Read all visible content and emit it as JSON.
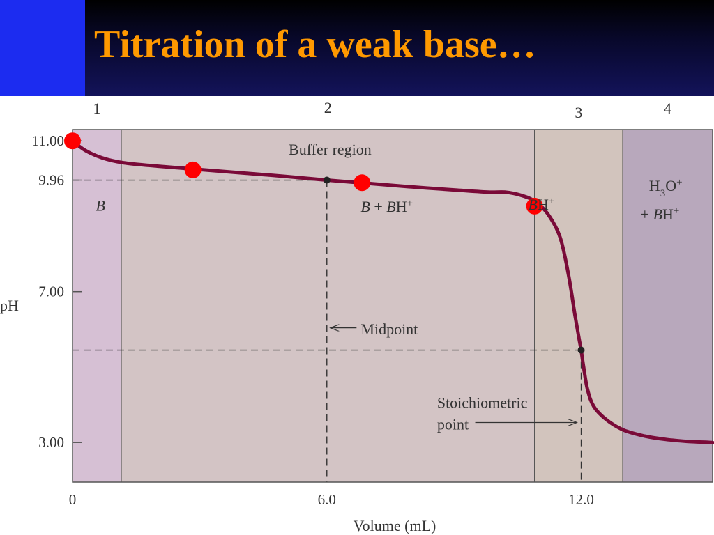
{
  "slide": {
    "title": "Titration of a weak base…",
    "colors": {
      "title": "#ff9900",
      "header_bg": "#0b0b3a",
      "accent_bar": "#1c2cf0"
    }
  },
  "chart_data": {
    "type": "line",
    "title": "",
    "xlabel": "Volume (mL)",
    "ylabel": "pH",
    "xlim": [
      0,
      15.1
    ],
    "ylim": [
      1.95,
      11.3
    ],
    "x_ticks": [
      {
        "value": 0,
        "label": "0"
      },
      {
        "value": 6.0,
        "label": "6.0"
      },
      {
        "value": 12.0,
        "label": "12.0"
      }
    ],
    "y_ticks": [
      {
        "value": 11.0,
        "label": "11.00"
      },
      {
        "value": 9.96,
        "label": "9.96"
      },
      {
        "value": 7.0,
        "label": "7.00"
      },
      {
        "value": 3.0,
        "label": "3.00"
      }
    ],
    "regions": [
      {
        "number": "1",
        "from": 0,
        "to": 1.15,
        "color": "#d6c0d4"
      },
      {
        "number": "2",
        "from": 1.15,
        "to": 10.9,
        "color": "#d3c4c5"
      },
      {
        "number": "3",
        "from": 10.9,
        "to": 12.98,
        "color": "#d2c4bd"
      },
      {
        "number": "4",
        "from": 12.98,
        "to": 15.1,
        "color": "#b8a8bc"
      }
    ],
    "region_labels": [
      {
        "parts": [
          {
            "t": "B",
            "i": true
          }
        ],
        "x": 0.55,
        "y": 9.28
      },
      {
        "parts": [
          {
            "t": "Buffer region"
          }
        ],
        "x": 5.1,
        "y": 10.76
      },
      {
        "parts": [
          {
            "t": "B",
            "i": true
          },
          {
            "t": " + "
          },
          {
            "t": "B",
            "i": true
          },
          {
            "t": "H"
          },
          {
            "t": "+",
            "sup": true
          }
        ],
        "x": 6.8,
        "y": 9.25
      },
      {
        "parts": [
          {
            "t": "B",
            "i": true
          },
          {
            "t": "H"
          },
          {
            "t": "+",
            "sup": true
          }
        ],
        "x": 10.75,
        "y": 9.3
      },
      {
        "parts": [
          {
            "t": "H"
          },
          {
            "t": "3",
            "sub": true
          },
          {
            "t": "O"
          },
          {
            "t": "+",
            "sup": true
          }
        ],
        "x": 13.6,
        "y": 9.8
      },
      {
        "parts": [
          {
            "t": "+ "
          },
          {
            "t": "B",
            "i": true
          },
          {
            "t": "H"
          },
          {
            "t": "+",
            "sup": true
          }
        ],
        "x": 13.4,
        "y": 9.05
      }
    ],
    "series": [
      {
        "x": [
          0,
          0.3,
          0.7,
          1.2,
          2.0,
          3.0,
          4.0,
          5.0,
          6.0,
          7.0,
          8.0,
          9.0,
          9.8,
          10.2,
          10.6,
          10.9,
          11.2,
          11.5,
          11.7,
          11.85,
          11.95,
          12.0,
          12.05,
          12.15,
          12.3,
          12.6,
          13.0,
          13.5,
          14.0,
          14.5,
          15.1
        ],
        "y": [
          11.0,
          10.75,
          10.55,
          10.42,
          10.33,
          10.24,
          10.15,
          10.06,
          9.96,
          9.87,
          9.78,
          9.7,
          9.64,
          9.64,
          9.55,
          9.4,
          9.08,
          8.45,
          7.45,
          6.4,
          5.75,
          5.45,
          5.05,
          4.4,
          3.95,
          3.6,
          3.33,
          3.17,
          3.08,
          3.03,
          3.0
        ],
        "color": "#7a0a38"
      }
    ],
    "highlight_points": [
      {
        "x": 0,
        "y": 11.0
      },
      {
        "x": 2.84,
        "y": 10.23
      },
      {
        "x": 6.83,
        "y": 9.89
      },
      {
        "x": 10.9,
        "y": 9.27
      }
    ],
    "reference_points": [
      {
        "x": 6.0,
        "y": 9.96
      },
      {
        "x": 12.0,
        "y": 5.45
      }
    ],
    "guides": [
      {
        "x1": 0,
        "y1": 9.96,
        "x2": 6.0,
        "y2": 9.96
      },
      {
        "x1": 6.0,
        "y1": 9.96,
        "x2": 6.0,
        "y2": 1.95
      },
      {
        "x1": 0,
        "y1": 5.45,
        "x2": 12.0,
        "y2": 5.45
      },
      {
        "x1": 12.0,
        "y1": 5.45,
        "x2": 12.0,
        "y2": 1.95
      }
    ],
    "annotations": [
      {
        "lines": [
          "Midpoint"
        ],
        "text_x": 6.8,
        "text_y": 6.0,
        "arrow_from_x": 6.7,
        "arrow_to_x": 6.08,
        "arrow_y": 6.04
      },
      {
        "lines": [
          "Stoichiometric",
          "point"
        ],
        "text_x": 8.6,
        "text_y": 4.05,
        "arrow_from_x": 9.5,
        "arrow_to_x": 11.9,
        "arrow_y": 3.53
      }
    ],
    "colors": {
      "curve": "#7a0a38",
      "highlight": "#ff0000",
      "reference_point": "#222222",
      "axes": "#555555"
    },
    "grid": false,
    "legend": "none"
  }
}
